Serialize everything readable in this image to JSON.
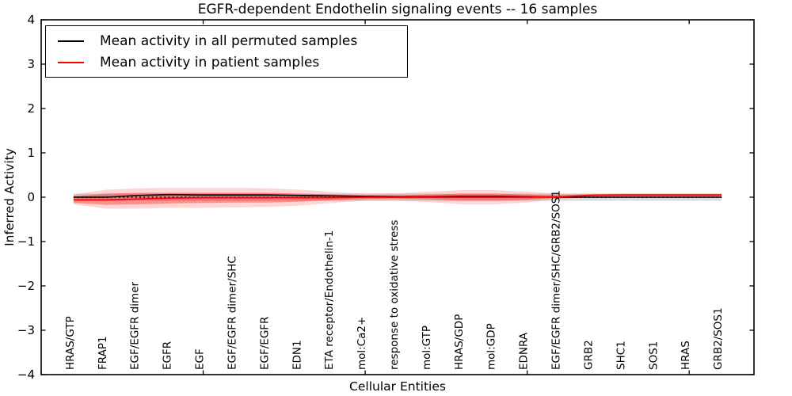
{
  "figure": {
    "title": "EGFR-dependent Endothelin signaling events -- 16 samples",
    "xlabel": "Cellular Entities",
    "ylabel": "Inferred Activity"
  },
  "legend": {
    "position": "upper-left",
    "items": [
      {
        "label": "Mean activity in all permuted samples",
        "color": "#000000"
      },
      {
        "label": "Mean activity in patient samples",
        "color": "#ff0000"
      }
    ]
  },
  "chart_data": {
    "type": "line",
    "title": "EGFR-dependent Endothelin signaling events -- 16 samples",
    "xlabel": "Cellular Entities",
    "ylabel": "Inferred Activity",
    "xlim": [
      0,
      22
    ],
    "ylim": [
      -4,
      4
    ],
    "yticks": [
      -4,
      -3,
      -2,
      -1,
      0,
      1,
      2,
      3,
      4
    ],
    "xticks_unlabeled": [
      0,
      5,
      10,
      15,
      20
    ],
    "grid": false,
    "legend_position": "upper-left",
    "categories": [
      "HRAS/GTP",
      "FRAP1",
      "EGF/EGFR dimer",
      "EGFR",
      "EGF",
      "EGF/EGFR dimer/SHC",
      "EGF/EGFR",
      "EDN1",
      "ETA receptor/Endothelin-1",
      "mol:Ca2+",
      "response to oxidative stress",
      "mol:GTP",
      "HRAS/GDP",
      "mol:GDP",
      "EDNRA",
      "EGF/EGFR dimer/SHC/GRB2/SOS1",
      "GRB2",
      "SHC1",
      "SOS1",
      "HRAS",
      "GRB2/SOS1"
    ],
    "x": [
      1,
      2,
      3,
      4,
      5,
      6,
      7,
      8,
      9,
      10,
      11,
      12,
      13,
      14,
      15,
      16,
      17,
      18,
      19,
      20,
      21
    ],
    "zero_line": {
      "y": 0,
      "color": "#000000",
      "style": "dotted"
    },
    "series": [
      {
        "name": "Mean activity in all permuted samples",
        "color": "#000000",
        "style": "solid",
        "values": [
          0.0,
          0.0,
          0.04,
          0.06,
          0.05,
          0.05,
          0.05,
          0.04,
          0.03,
          0.02,
          0.01,
          0.01,
          0.02,
          0.02,
          0.01,
          0.0,
          0.0,
          0.0,
          0.0,
          0.0,
          0.0
        ]
      },
      {
        "name": "Mean activity in patient samples",
        "color": "#ff0000",
        "style": "solid",
        "values": [
          -0.06,
          -0.06,
          -0.04,
          -0.02,
          -0.01,
          -0.01,
          -0.01,
          -0.01,
          -0.01,
          0.0,
          0.0,
          0.0,
          0.0,
          0.0,
          0.0,
          0.01,
          0.04,
          0.05,
          0.05,
          0.05,
          0.05
        ]
      }
    ],
    "bands": [
      {
        "name": "permuted-samples-range",
        "color": "#999999",
        "opacity": 0.35,
        "upper": [
          0.08,
          0.08,
          0.08,
          0.08,
          0.08,
          0.08,
          0.08,
          0.08,
          0.08,
          0.08,
          0.08,
          0.08,
          0.08,
          0.08,
          0.08,
          0.08,
          0.08,
          0.08,
          0.08,
          0.08,
          0.08
        ],
        "lower": [
          -0.08,
          -0.08,
          -0.08,
          -0.08,
          -0.08,
          -0.08,
          -0.08,
          -0.08,
          -0.08,
          -0.08,
          -0.08,
          -0.08,
          -0.08,
          -0.08,
          -0.08,
          -0.08,
          -0.08,
          -0.08,
          -0.08,
          -0.08,
          -0.08
        ]
      },
      {
        "name": "patient-samples-outer-band",
        "color": "#ff0000",
        "opacity": 0.16,
        "upper": [
          0.06,
          0.17,
          0.2,
          0.21,
          0.21,
          0.21,
          0.2,
          0.17,
          0.12,
          0.08,
          0.09,
          0.13,
          0.16,
          0.16,
          0.13,
          0.08,
          0.08,
          0.08,
          0.08,
          0.08,
          0.08
        ],
        "lower": [
          -0.16,
          -0.26,
          -0.26,
          -0.24,
          -0.24,
          -0.23,
          -0.22,
          -0.19,
          -0.13,
          -0.08,
          -0.08,
          -0.11,
          -0.16,
          -0.16,
          -0.12,
          -0.04,
          0.01,
          0.01,
          0.01,
          0.01,
          0.01
        ]
      },
      {
        "name": "patient-samples-inner-band",
        "color": "#ff0000",
        "opacity": 0.33,
        "upper": [
          0.02,
          0.08,
          0.1,
          0.1,
          0.1,
          0.1,
          0.1,
          0.08,
          0.06,
          0.04,
          0.04,
          0.06,
          0.08,
          0.08,
          0.06,
          0.04,
          0.07,
          0.07,
          0.07,
          0.07,
          0.07
        ],
        "lower": [
          -0.13,
          -0.17,
          -0.16,
          -0.14,
          -0.13,
          -0.12,
          -0.12,
          -0.1,
          -0.07,
          -0.04,
          -0.03,
          -0.05,
          -0.08,
          -0.08,
          -0.06,
          -0.01,
          0.03,
          0.03,
          0.03,
          0.03,
          0.03
        ]
      }
    ]
  }
}
